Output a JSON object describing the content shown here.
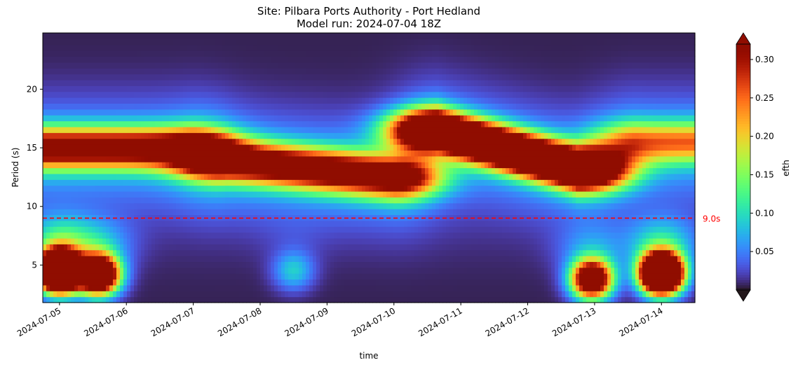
{
  "chart_data": {
    "type": "heatmap",
    "title": "Site: Pilbara Ports Authority - Port Hedland",
    "subtitle": "Model run: 2024-07-04 18Z",
    "xlabel": "time",
    "ylabel": "Period (s)",
    "x_ticks": [
      "2024-07-05",
      "2024-07-06",
      "2024-07-07",
      "2024-07-08",
      "2024-07-09",
      "2024-07-10",
      "2024-07-11",
      "2024-07-12",
      "2024-07-13",
      "2024-07-14"
    ],
    "x_range": [
      "2024-07-04 18:00",
      "2024-07-14 12:00"
    ],
    "y_ticks": [
      5,
      10,
      15,
      20
    ],
    "ylim": [
      1.8,
      24.8
    ],
    "colorbar": {
      "label": "efth",
      "ticks": [
        "0.05",
        "0.10",
        "0.15",
        "0.20",
        "0.25",
        "0.30"
      ],
      "range": [
        0.0,
        0.32
      ],
      "extend": "both",
      "colormap": "turbo"
    },
    "reference_line": {
      "y": 9.0,
      "label": "9.0s",
      "color": "#ff0000",
      "style": "dashed"
    },
    "energy_features": [
      {
        "kind": "swell",
        "t_start": "2024-07-04 18:00",
        "t_end": "2024-07-06 21:00",
        "period_start": 15.0,
        "period_end": 15.0,
        "peak": 0.31
      },
      {
        "kind": "swell",
        "t_start": "2024-07-07 12:00",
        "t_end": "2024-07-10 00:00",
        "period_start": 14.0,
        "period_end": 12.5,
        "peak": 0.34
      },
      {
        "kind": "swell",
        "t_start": "2024-07-10 16:00",
        "t_end": "2024-07-12 18:00",
        "period_start": 16.5,
        "period_end": 13.2,
        "peak": 0.55
      },
      {
        "kind": "swell",
        "t_start": "2024-07-13 16:00",
        "t_end": "2024-07-14 12:00",
        "period_start": 15.5,
        "period_end": 15.5,
        "peak": 0.19
      },
      {
        "kind": "sea",
        "t": "2024-07-05 00:00",
        "period": 4.5,
        "peak": 0.9
      },
      {
        "kind": "sea",
        "t": "2024-07-05 14:00",
        "period": 4.2,
        "peak": 0.55
      },
      {
        "kind": "sea",
        "t": "2024-07-08 12:00",
        "period": 4.5,
        "peak": 0.08
      },
      {
        "kind": "sea",
        "t": "2024-07-12 23:00",
        "period": 3.8,
        "peak": 0.45
      },
      {
        "kind": "sea",
        "t": "2024-07-14 00:00",
        "period": 4.3,
        "peak": 0.8
      }
    ]
  }
}
